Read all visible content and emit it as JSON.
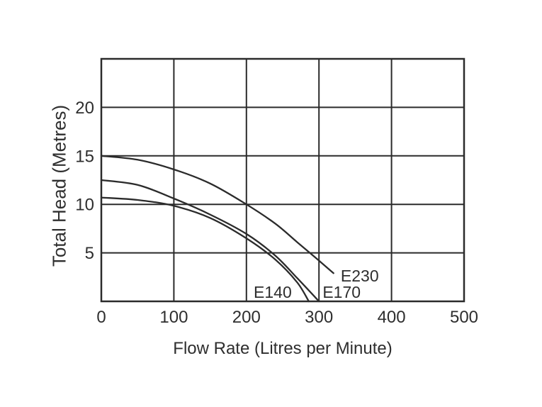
{
  "page": {
    "background_color": "#ffffff",
    "line_color": "#2b2b2b",
    "text_color": "#2e2e2e"
  },
  "chart_data": {
    "type": "line",
    "title": "",
    "xlabel": "Flow Rate (Litres per Minute)",
    "ylabel": "Total Head (Metres)",
    "xlim": [
      0,
      500
    ],
    "ylim": [
      0,
      25
    ],
    "x_ticks": [
      0,
      100,
      200,
      300,
      400,
      500
    ],
    "y_ticks": [
      5,
      10,
      15,
      20
    ],
    "grid": true,
    "legend_position": "inline-labels",
    "series": [
      {
        "name": "E140",
        "points": [
          [
            0,
            10.7
          ],
          [
            50,
            10.45
          ],
          [
            100,
            9.85
          ],
          [
            150,
            8.6
          ],
          [
            200,
            6.5
          ],
          [
            240,
            4.3
          ],
          [
            270,
            1.95
          ],
          [
            286,
            0
          ]
        ],
        "label_pos": {
          "x": 210,
          "y": 0.8
        }
      },
      {
        "name": "E170",
        "points": [
          [
            0,
            12.5
          ],
          [
            50,
            12.0
          ],
          [
            100,
            10.6
          ],
          [
            150,
            8.95
          ],
          [
            200,
            6.95
          ],
          [
            240,
            4.7
          ],
          [
            270,
            2.4
          ],
          [
            300,
            0
          ]
        ],
        "label_pos": {
          "x": 305,
          "y": 0.8
        }
      },
      {
        "name": "E230",
        "points": [
          [
            0,
            15
          ],
          [
            50,
            14.6
          ],
          [
            100,
            13.6
          ],
          [
            150,
            12.15
          ],
          [
            200,
            10
          ],
          [
            240,
            8.0
          ],
          [
            270,
            6.1
          ],
          [
            300,
            4.2
          ],
          [
            320,
            2.9
          ]
        ],
        "label_pos": {
          "x": 330,
          "y": 2.5
        }
      }
    ]
  }
}
